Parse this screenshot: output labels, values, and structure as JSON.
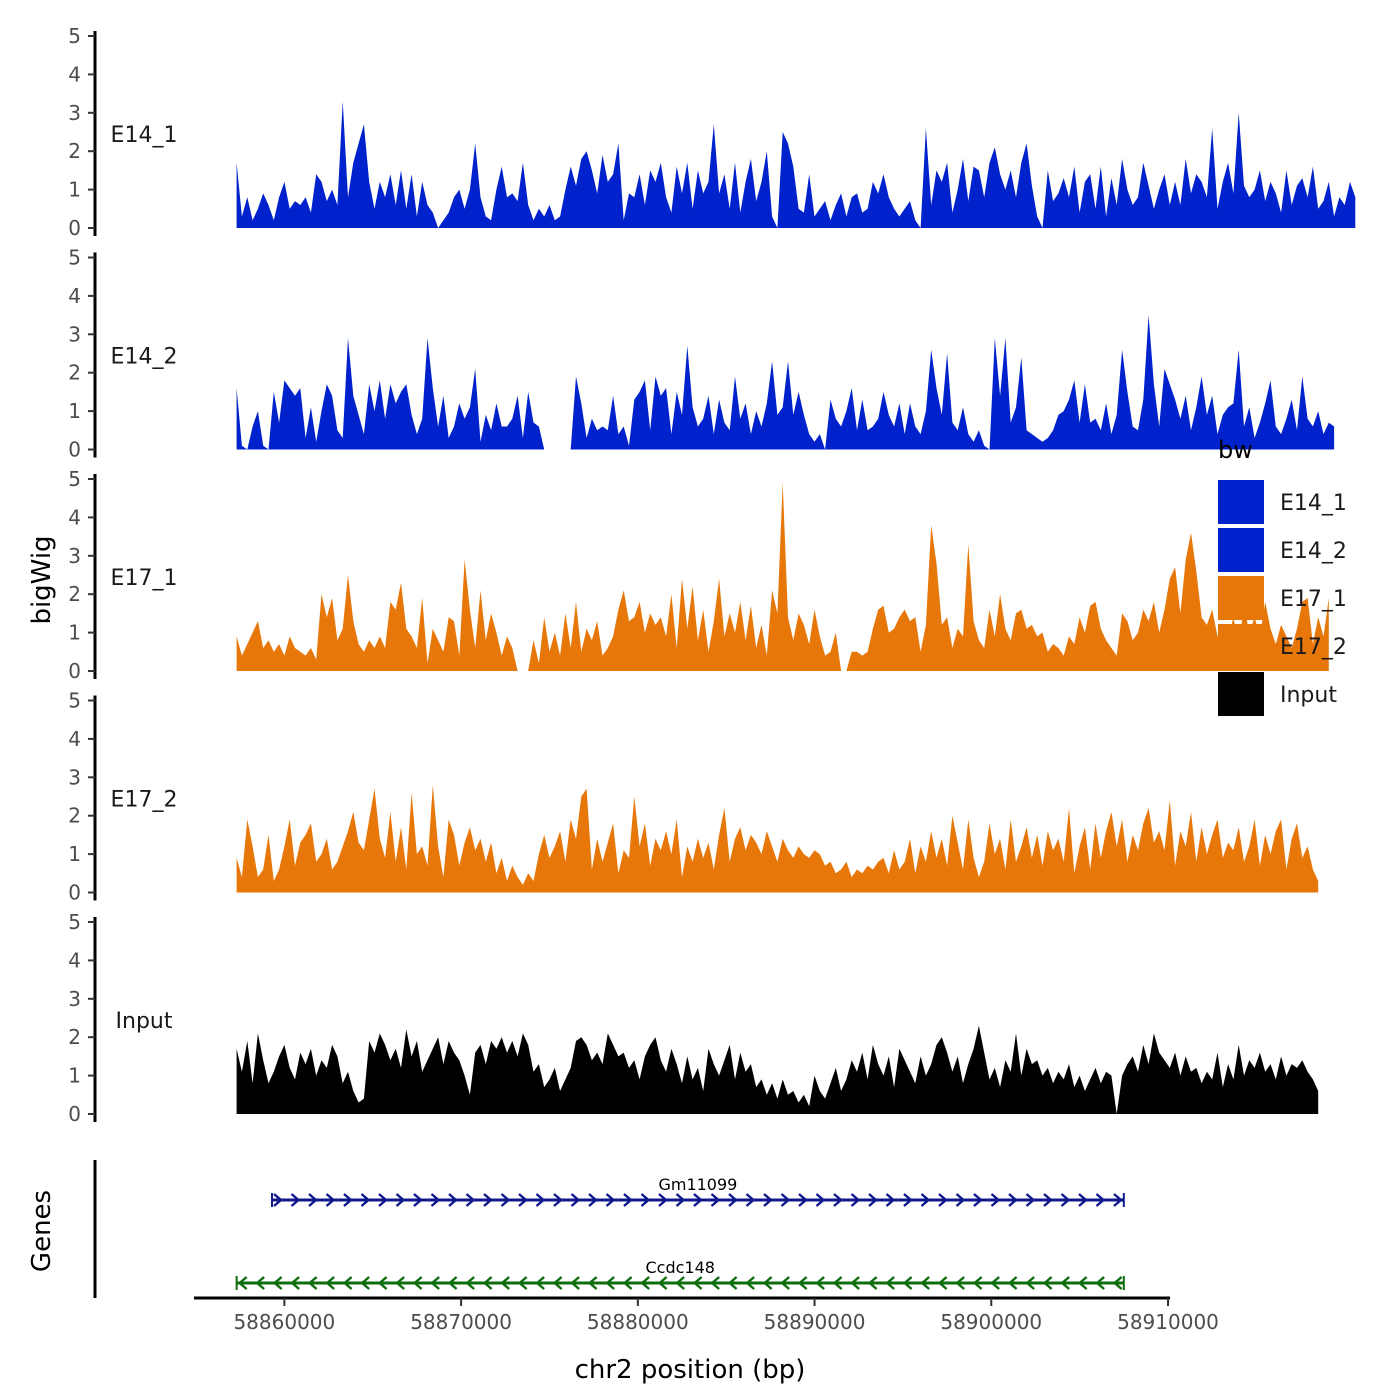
{
  "chart_data": {
    "type": "area",
    "title": "",
    "ylabel": "bigWig",
    "xlabel": "chr2 position (bp)",
    "xlim": [
      58855000,
      58910000
    ],
    "ylim": [
      0,
      5
    ],
    "x_ticks": [
      58860000,
      58870000,
      58880000,
      58890000,
      58900000,
      58910000
    ],
    "x_tick_labels": [
      "58860000",
      "58870000",
      "58880000",
      "58890000",
      "58900000",
      "58910000"
    ],
    "y_ticks": [
      0,
      1,
      2,
      3,
      4,
      5
    ],
    "y_tick_labels": [
      "0",
      "1",
      "2",
      "3",
      "4",
      "5"
    ],
    "bin_start": 58857300,
    "bin_size": 300,
    "series": [
      {
        "name": "E14_1",
        "color": "#0022CC",
        "values": [
          1.7,
          0.3,
          0.8,
          0.2,
          0.5,
          0.9,
          0.6,
          0.2,
          0.8,
          1.2,
          0.5,
          0.7,
          0.6,
          0.8,
          0.4,
          1.4,
          1.2,
          0.7,
          1,
          0.6,
          3.3,
          0.8,
          1.7,
          2.2,
          2.7,
          1.2,
          0.5,
          1.2,
          0.8,
          1.4,
          0.6,
          1.5,
          0.5,
          1.4,
          0.3,
          1.2,
          0.6,
          0.4,
          0,
          0.2,
          0.4,
          0.8,
          1,
          0.5,
          1,
          2.2,
          0.8,
          0.3,
          0.2,
          1,
          1.6,
          0.8,
          0.9,
          0.7,
          1.7,
          0.6,
          0.2,
          0.5,
          0.3,
          0.6,
          0.2,
          0.3,
          1,
          1.6,
          1.1,
          1.8,
          2,
          1.5,
          0.9,
          1.9,
          1.2,
          1.4,
          2.2,
          0.2,
          0.9,
          0.8,
          1.4,
          0.6,
          1.5,
          1.2,
          1.7,
          0.8,
          0.4,
          1.6,
          0.9,
          1.7,
          0.5,
          1.5,
          0.9,
          1.2,
          2.7,
          0.9,
          1.4,
          0.5,
          1.7,
          0.4,
          1.2,
          1.8,
          0.7,
          1.2,
          2.0,
          0.3,
          0,
          2.5,
          2.2,
          1.6,
          0.5,
          0.4,
          1.4,
          0.3,
          0.5,
          0.7,
          0.2,
          0.6,
          0.9,
          0.3,
          0.8,
          0.9,
          0.4,
          0.5,
          1.2,
          0.9,
          1.4,
          0.8,
          0.5,
          0.3,
          0.5,
          0.7,
          0.2,
          0,
          2.6,
          0.6,
          1.5,
          1.2,
          1.7,
          0.4,
          1,
          1.8,
          0.7,
          1.6,
          1.5,
          0.8,
          1.7,
          2.1,
          1.4,
          1.0,
          1.5,
          0.8,
          1.7,
          2.2,
          1.1,
          0.3,
          0,
          1.5,
          0.7,
          0.9,
          1.3,
          0.8,
          1.6,
          0.4,
          1.2,
          1.4,
          0.5,
          1.6,
          0.3,
          1.3,
          0.6,
          1.8,
          1,
          0.6,
          0.8,
          1.7,
          1.1,
          0.5,
          1.0,
          1.4,
          0.6,
          1.2,
          0.6,
          1.8,
          0.9,
          1.4,
          1.2,
          0.8,
          2.6,
          0.5,
          1.2,
          1.7,
          0.9,
          3.0,
          1.1,
          0.8,
          1.0,
          1.5,
          0.7,
          1.2,
          0.9,
          0.4,
          1.5,
          0.6,
          1.1,
          1.3,
          0.8,
          1.6,
          0.5,
          0.7,
          1.2,
          0.3,
          0.8,
          0.6,
          1.2,
          0.8
        ]
      },
      {
        "name": "E14_2",
        "color": "#0022CC",
        "values": [
          1.6,
          0.1,
          0,
          0.6,
          1.0,
          0.1,
          0,
          1.5,
          0.7,
          1.8,
          1.6,
          1.4,
          1.6,
          0.3,
          1.1,
          0.2,
          1,
          1.7,
          1.4,
          0.5,
          0.3,
          2.9,
          1.4,
          0.9,
          0.4,
          1.7,
          1.0,
          1.8,
          0.8,
          1.7,
          1.2,
          1.5,
          1.7,
          0.9,
          0.4,
          0.8,
          2.9,
          1.6,
          0.6,
          1.4,
          0.3,
          0.6,
          1.2,
          0.8,
          1.1,
          2.1,
          0.2,
          0.9,
          0.5,
          1.2,
          0.6,
          0.6,
          0.8,
          1.4,
          0.3,
          1.5,
          0.7,
          0.6,
          0,
          0,
          0,
          0,
          0,
          0,
          1.9,
          1.2,
          0.3,
          0.8,
          0.5,
          0.6,
          0.5,
          1.4,
          0.4,
          0.6,
          0.1,
          1.3,
          1.5,
          1.8,
          0.5,
          1.9,
          1.4,
          1.6,
          0.4,
          1.5,
          0.9,
          2.7,
          1.1,
          0.6,
          0.8,
          1.4,
          0.4,
          1.3,
          0.7,
          0.5,
          1.9,
          0.8,
          1.2,
          0.4,
          1.0,
          0.6,
          1.2,
          2.3,
          0.9,
          1.1,
          2.3,
          0.9,
          1.5,
          0.9,
          0.4,
          0.2,
          0.4,
          0,
          1.3,
          0.8,
          0.6,
          1.0,
          1.6,
          0.5,
          1.3,
          0.5,
          0.6,
          0.8,
          1.5,
          0.9,
          0.6,
          1.2,
          0.4,
          1.2,
          0.6,
          0.4,
          1.0,
          2.6,
          1.6,
          0.9,
          2.5,
          0.7,
          0.5,
          1.1,
          0.4,
          0.2,
          0.5,
          0.1,
          0,
          2.9,
          1.4,
          2.9,
          0.7,
          1.1,
          2.4,
          0.5,
          0.4,
          0.3,
          0.2,
          0.3,
          0.5,
          0.9,
          1.0,
          1.3,
          1.8,
          0.7,
          1.7,
          0.7,
          0.8,
          0.5,
          1.2,
          0.4,
          0.9,
          2.6,
          1.5,
          0.6,
          0.5,
          1.3,
          3.5,
          1.7,
          0.6,
          2.1,
          1.7,
          1.3,
          0.8,
          1.4,
          0.5,
          1.1,
          1.9,
          0.9,
          1.4,
          0.4,
          0.9,
          1.1,
          1.2,
          2.6,
          0.6,
          1.1,
          0.3,
          0.7,
          1.2,
          1.8,
          0.6,
          0.4,
          0.8,
          1.3,
          0.5,
          1.9,
          0.8,
          0.6,
          1.0,
          0.4,
          0.7,
          0.6
        ]
      },
      {
        "name": "E17_1",
        "color": "#E8770A",
        "values": [
          0.9,
          0.4,
          0.7,
          1.0,
          1.3,
          0.6,
          0.8,
          0.5,
          0.7,
          0.4,
          0.9,
          0.6,
          0.5,
          0.4,
          0.6,
          0.3,
          2,
          1.4,
          1.9,
          0.8,
          1.1,
          2.5,
          1.3,
          0.7,
          0.5,
          0.8,
          0.6,
          0.9,
          0.6,
          1.8,
          1.6,
          2.3,
          1.1,
          0.9,
          0.6,
          1.9,
          0.2,
          1.1,
          0.8,
          0.5,
          1.4,
          1.3,
          0.4,
          2.9,
          1.6,
          0.6,
          2.1,
          0.8,
          1.5,
          1.0,
          0.4,
          0.9,
          0.6,
          0,
          0,
          0,
          0.8,
          0.2,
          1.4,
          0.5,
          1.0,
          0.4,
          1.5,
          0.6,
          1.8,
          0.5,
          1.1,
          0.8,
          1.3,
          0.4,
          0.6,
          0.9,
          1.6,
          2.1,
          1.3,
          1.4,
          1.8,
          1.0,
          1.5,
          1.2,
          1.4,
          0.9,
          2.0,
          0.6,
          2.4,
          1.1,
          2.2,
          0.8,
          1.6,
          0.5,
          1.3,
          2.4,
          0.9,
          1.5,
          1.0,
          1.8,
          0.8,
          1.7,
          0.6,
          1.2,
          0.4,
          2.1,
          1.5,
          4.9,
          1.4,
          0.8,
          1.5,
          1.2,
          0.7,
          1.6,
          0.9,
          0.4,
          0.5,
          1.0,
          0,
          0,
          0.5,
          0.5,
          0.4,
          0.5,
          1.1,
          1.6,
          1.7,
          1.0,
          1.1,
          1.4,
          1.6,
          1.3,
          1.4,
          0.5,
          1.2,
          3.8,
          2.8,
          1.2,
          1.4,
          0.6,
          1.1,
          0.9,
          3.3,
          1.3,
          0.8,
          0.6,
          1.6,
          0.9,
          2,
          1.1,
          0.8,
          1.5,
          1.6,
          1.1,
          1.2,
          0.9,
          1.0,
          0.5,
          0.7,
          0.6,
          0.4,
          0.9,
          0.7,
          1.4,
          1.0,
          1.7,
          1.8,
          1.1,
          0.8,
          0.6,
          0.4,
          1.5,
          1.3,
          0.8,
          1.0,
          1.6,
          1.3,
          1.8,
          1.0,
          1.6,
          2.4,
          2.7,
          1.5,
          2.9,
          3.6,
          2.6,
          1.4,
          1.2,
          1.6,
          0.9,
          1.2,
          0.8,
          1.4,
          0.7,
          1.7,
          1.0,
          1.4,
          0.9,
          1.8,
          1.1,
          0.7,
          1.2,
          0.9,
          0.6,
          1.1,
          1.8,
          1.9,
          0.7,
          1.4,
          0.9,
          1.9
        ]
      },
      {
        "name": "E17_2",
        "color": "#E8770A",
        "values": [
          0.9,
          0.4,
          1.9,
          1.2,
          0.4,
          0.6,
          1.5,
          0.3,
          0.6,
          1.2,
          1.9,
          0.7,
          1.3,
          1.5,
          1.8,
          0.8,
          1.0,
          1.4,
          0.6,
          0.8,
          1.2,
          1.6,
          2.1,
          1.3,
          1.1,
          1.9,
          2.7,
          1.4,
          0.9,
          2.1,
          0.8,
          1.7,
          0.6,
          2.6,
          1.0,
          1.2,
          0.7,
          2.8,
          1.2,
          0.4,
          1.9,
          1.5,
          0.7,
          1.3,
          1.7,
          1.1,
          1.4,
          0.8,
          1.3,
          0.5,
          0.9,
          0.3,
          0.7,
          0.4,
          0.2,
          0.5,
          0.3,
          1.0,
          1.5,
          0.9,
          1.2,
          1.6,
          0.8,
          1.9,
          1.4,
          2.5,
          2.7,
          0.6,
          1.4,
          0.8,
          1.3,
          1.8,
          0.5,
          1.1,
          0.9,
          2.5,
          1.2,
          1.8,
          0.7,
          1.4,
          1.1,
          1.6,
          1.0,
          1.9,
          0.4,
          1.2,
          0.8,
          1.4,
          0.9,
          1.3,
          0.6,
          1.5,
          2.2,
          0.8,
          1.4,
          1.7,
          1.1,
          1.5,
          1.3,
          1.0,
          1.6,
          1.2,
          0.8,
          1.4,
          1.1,
          0.9,
          1.2,
          1.0,
          0.9,
          1.1,
          1.0,
          0.7,
          0.8,
          0.5,
          0.6,
          0.8,
          0.4,
          0.6,
          0.5,
          0.7,
          0.6,
          0.8,
          0.9,
          0.5,
          1.1,
          0.6,
          0.8,
          1.4,
          0.5,
          1.2,
          0.8,
          1.6,
          0.9,
          1.4,
          0.7,
          2.0,
          1.3,
          0.6,
          1.9,
          0.9,
          0.4,
          0.8,
          1.8,
          1.0,
          1.4,
          0.6,
          1.9,
          0.8,
          1.2,
          1.7,
          0.9,
          1.5,
          0.7,
          1.6,
          1.1,
          1.4,
          0.8,
          2.2,
          0.5,
          1.2,
          1.7,
          0.6,
          1.8,
          0.9,
          1.6,
          2.1,
          1.2,
          1.9,
          0.8,
          1.5,
          1.1,
          1.8,
          2.2,
          1.3,
          1.6,
          1.1,
          2.4,
          0.7,
          1.6,
          1.2,
          2.1,
          0.8,
          1.7,
          1.0,
          1.5,
          1.9,
          0.9,
          1.3,
          1.1,
          1.7,
          0.8,
          1.2,
          1.9,
          0.7,
          1.5,
          1.0,
          1.6,
          1.9,
          0.6,
          1.4,
          1.8,
          0.9,
          1.2,
          0.6,
          0.3
        ]
      },
      {
        "name": "Input",
        "color": "#000000",
        "values": [
          1.7,
          1.1,
          1.9,
          0.8,
          2.1,
          1.4,
          0.8,
          1.1,
          1.5,
          1.8,
          1.2,
          0.9,
          1.6,
          1.3,
          1.7,
          1.0,
          1.4,
          1.2,
          1.8,
          1.5,
          0.8,
          1.1,
          0.6,
          0.3,
          0.4,
          1.9,
          1.6,
          2.1,
          1.8,
          1.4,
          1.7,
          1.2,
          2.2,
          1.5,
          1.9,
          1.1,
          1.4,
          1.7,
          2.0,
          1.3,
          1.9,
          1.6,
          1.4,
          1.0,
          0.5,
          1.6,
          1.8,
          1.3,
          1.9,
          1.7,
          2.0,
          1.6,
          1.9,
          1.5,
          2.1,
          1.8,
          1.1,
          1.3,
          0.7,
          0.9,
          1.2,
          0.6,
          0.9,
          1.2,
          1.9,
          2.0,
          1.8,
          1.4,
          1.6,
          1.3,
          2.1,
          1.8,
          1.5,
          1.6,
          1.2,
          1.4,
          0.9,
          1.5,
          1.8,
          2.0,
          1.4,
          1.1,
          1.7,
          1.3,
          0.8,
          1.5,
          0.9,
          1.2,
          0.6,
          1.7,
          1.3,
          1.0,
          1.4,
          1.8,
          0.9,
          1.6,
          1.1,
          1.3,
          0.7,
          0.9,
          0.5,
          0.8,
          0.4,
          0.9,
          0.5,
          0.6,
          0.3,
          0.5,
          0.2,
          1.0,
          0.6,
          0.4,
          0.8,
          1.2,
          0.6,
          0.9,
          1.4,
          1.1,
          1.6,
          0.9,
          1.8,
          1.3,
          1.0,
          1.5,
          0.7,
          1.7,
          1.4,
          1.1,
          0.8,
          1.5,
          1.0,
          1.3,
          1.8,
          2.0,
          1.6,
          1.1,
          1.5,
          0.8,
          1.3,
          1.7,
          2.3,
          1.6,
          0.9,
          1.2,
          0.7,
          1.4,
          1.1,
          2.1,
          1.0,
          1.7,
          1.3,
          1.4,
          1.0,
          1.2,
          0.8,
          1.1,
          0.9,
          1.3,
          0.7,
          1.0,
          0.6,
          0.9,
          1.2,
          0.8,
          1.1,
          1.0,
          0,
          1.0,
          1.3,
          1.5,
          1.1,
          1.8,
          1.3,
          2.1,
          1.6,
          1.4,
          1.2,
          1.6,
          1.0,
          1.5,
          1.1,
          1.2,
          0.8,
          1.1,
          0.9,
          1.6,
          0.7,
          1.3,
          0.9,
          1.8,
          1.0,
          1.4,
          1.2,
          1.6,
          1.1,
          1.3,
          0.9,
          1.5,
          1.0,
          1.3,
          1.2,
          1.4,
          1.1,
          0.9,
          0.6
        ]
      }
    ],
    "genes": [
      {
        "name": "Gm11099",
        "start": 58859300,
        "end": 58907500,
        "strand": "+",
        "color": "#10188C"
      },
      {
        "name": "Ccdc148",
        "start": 58857300,
        "end": 58907500,
        "strand": "-",
        "color": "#0E6E0E"
      }
    ],
    "genes_label": "Genes",
    "legend": {
      "title": "bw",
      "placement": "right",
      "entries": [
        {
          "label": "E14_1",
          "color": "#0022CC"
        },
        {
          "label": "E14_2",
          "color": "#0022CC"
        },
        {
          "label": "E17_1",
          "color": "#E8770A"
        },
        {
          "label": "E17_2",
          "color": "#E8770A"
        },
        {
          "label": "Input",
          "color": "#000000"
        }
      ]
    }
  }
}
